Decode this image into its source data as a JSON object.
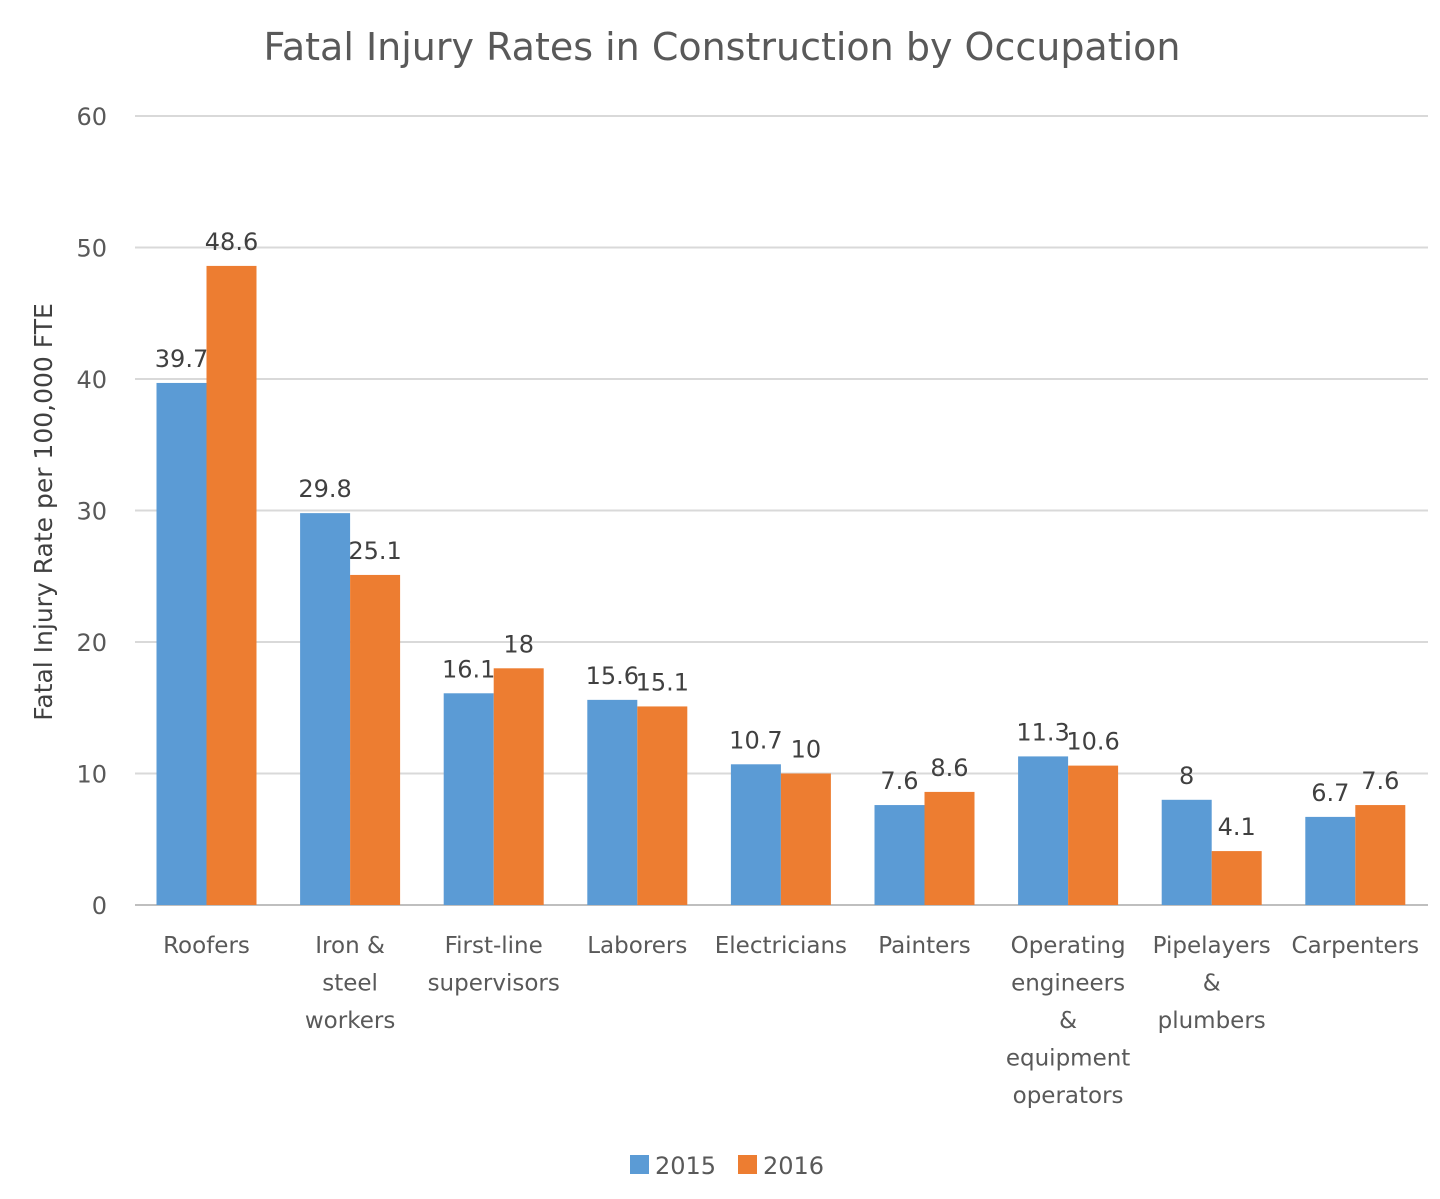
{
  "chart_data": {
    "type": "bar",
    "title": "Fatal Injury Rates in Construction by Occupation",
    "xlabel": "",
    "ylabel": "Fatal Injury Rate per 100,000 FTE",
    "ylim": [
      0,
      60
    ],
    "yticks": [
      "0",
      "10",
      "20",
      "30",
      "40",
      "50",
      "60"
    ],
    "grid": true,
    "legend_position": "bottom",
    "categories": [
      [
        "Roofers"
      ],
      [
        "Iron &",
        "steel",
        "workers"
      ],
      [
        "First-line",
        "supervisors"
      ],
      [
        "Laborers"
      ],
      [
        "Electricians"
      ],
      [
        "Painters"
      ],
      [
        "Operating",
        "engineers",
        "&",
        "equipment",
        "operators"
      ],
      [
        "Pipelayers",
        "&",
        "plumbers"
      ],
      [
        "Carpenters"
      ]
    ],
    "series": [
      {
        "name": "2015",
        "color": "#5b9bd5",
        "values": [
          39.7,
          29.8,
          16.1,
          15.6,
          10.7,
          7.6,
          11.3,
          8,
          6.7
        ],
        "labels": [
          "39.7",
          "29.8",
          "16.1",
          "15.6",
          "10.7",
          "7.6",
          "11.3",
          "8",
          "6.7"
        ]
      },
      {
        "name": "2016",
        "color": "#ed7d31",
        "values": [
          48.6,
          25.1,
          18,
          15.1,
          10,
          8.6,
          10.6,
          4.1,
          7.6
        ],
        "labels": [
          "48.6",
          "25.1",
          "18",
          "15.1",
          "10",
          "8.6",
          "10.6",
          "4.1",
          "7.6"
        ]
      }
    ]
  }
}
